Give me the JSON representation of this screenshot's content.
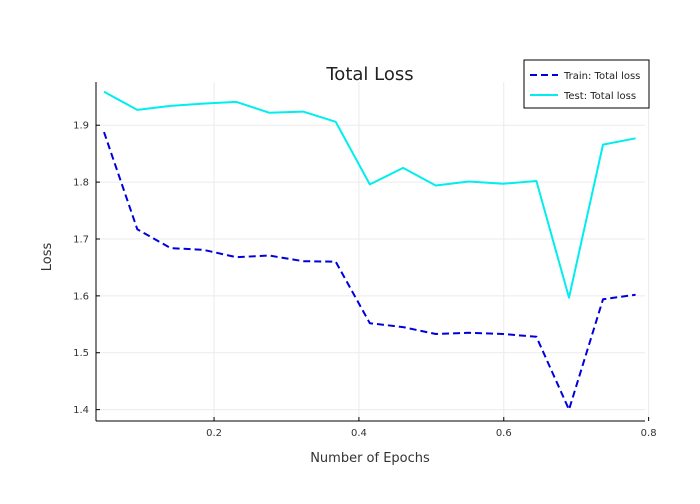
{
  "chart_data": {
    "type": "line",
    "title": "Total Loss",
    "xlabel": "Number of Epochs",
    "ylabel": "Loss",
    "xlim": [
      0.037,
      0.795
    ],
    "ylim": [
      1.38,
      1.976
    ],
    "xticks": [
      0.2,
      0.4,
      0.6,
      0.8
    ],
    "xtick_labels": [
      "0.2",
      "0.4",
      "0.6",
      "0.8"
    ],
    "yticks": [
      1.4,
      1.5,
      1.6,
      1.7,
      1.8,
      1.9
    ],
    "ytick_labels": [
      "1.4",
      "1.5",
      "1.6",
      "1.7",
      "1.8",
      "1.9"
    ],
    "grid": true,
    "legend_position": "top-right",
    "x": [
      0.048,
      0.094,
      0.14,
      0.185,
      0.231,
      0.276,
      0.323,
      0.368,
      0.415,
      0.461,
      0.506,
      0.552,
      0.599,
      0.645,
      0.69,
      0.737,
      0.782
    ],
    "series": [
      {
        "name": "Train: Total loss",
        "color": "#0000dd",
        "dash": true,
        "values": [
          1.888,
          1.717,
          1.684,
          1.681,
          1.668,
          1.671,
          1.661,
          1.66,
          1.552,
          1.545,
          1.533,
          1.535,
          1.533,
          1.528,
          1.4,
          1.594,
          1.602
        ]
      },
      {
        "name": "Test: Total loss",
        "color": "#00eeee",
        "dash": false,
        "values": [
          1.959,
          1.927,
          1.934,
          1.938,
          1.941,
          1.922,
          1.924,
          1.906,
          1.796,
          1.825,
          1.794,
          1.801,
          1.797,
          1.802,
          1.597,
          1.866,
          1.877
        ]
      }
    ]
  }
}
